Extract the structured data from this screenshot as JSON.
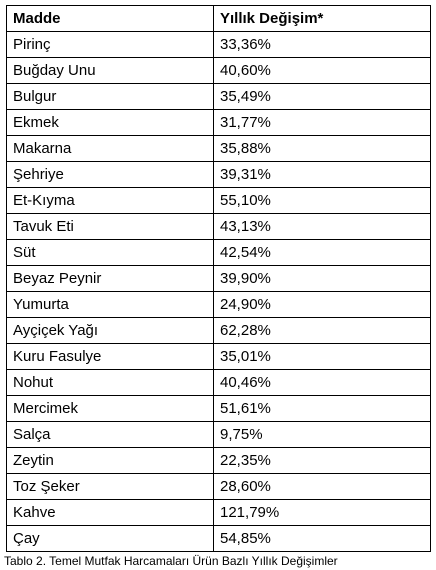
{
  "table": {
    "headers": [
      "Madde",
      "Yıllık Değişim*"
    ],
    "rows": [
      [
        "Pirinç",
        "33,36%"
      ],
      [
        "Buğday Unu",
        "40,60%"
      ],
      [
        "Bulgur",
        "35,49%"
      ],
      [
        "Ekmek",
        "31,77%"
      ],
      [
        "Makarna",
        "35,88%"
      ],
      [
        "Şehriye",
        "39,31%"
      ],
      [
        "Et-Kıyma",
        "55,10%"
      ],
      [
        "Tavuk Eti",
        "43,13%"
      ],
      [
        "Süt",
        "42,54%"
      ],
      [
        "Beyaz Peynir",
        "39,90%"
      ],
      [
        "Yumurta",
        "24,90%"
      ],
      [
        "Ayçiçek Yağı",
        "62,28%"
      ],
      [
        "Kuru Fasulye",
        "35,01%"
      ],
      [
        "Nohut",
        "40,46%"
      ],
      [
        "Mercimek",
        "51,61%"
      ],
      [
        "Salça",
        "9,75%"
      ],
      [
        "Zeytin",
        "22,35%"
      ],
      [
        "Toz Şeker",
        "28,60%"
      ],
      [
        "Kahve",
        "121,79%"
      ],
      [
        "Çay",
        "54,85%"
      ]
    ]
  },
  "caption": "Tablo 2. Temel Mutfak Harcamaları Ürün Bazlı Yıllık Değişimler"
}
